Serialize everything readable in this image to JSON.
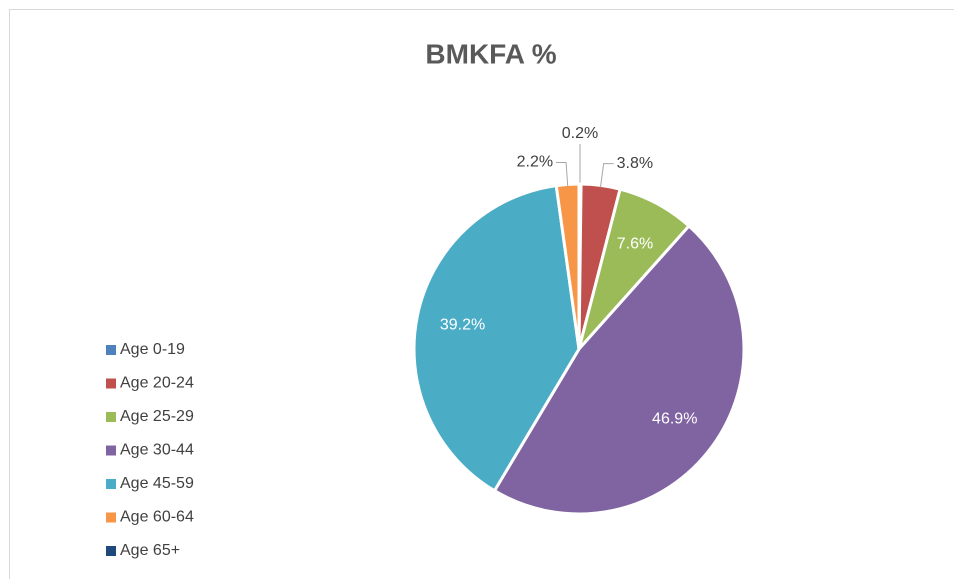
{
  "chart_data": {
    "type": "pie",
    "title": "BMKFA %",
    "categories": [
      "Age 0-19",
      "Age 20-24",
      "Age 25-29",
      "Age 30-44",
      "Age 45-59",
      "Age 60-64",
      "Age 65+"
    ],
    "values": [
      0.2,
      3.8,
      7.6,
      46.9,
      39.2,
      2.2,
      0
    ],
    "value_labels": [
      "0.2%",
      "3.8%",
      "7.6%",
      "46.9%",
      "39.2%",
      "2.2%",
      null
    ],
    "colors": [
      "#4f81bd",
      "#c0504d",
      "#9bbb59",
      "#8064a2",
      "#4bacc6",
      "#f79646",
      "#1f497d"
    ],
    "legend": "left"
  }
}
